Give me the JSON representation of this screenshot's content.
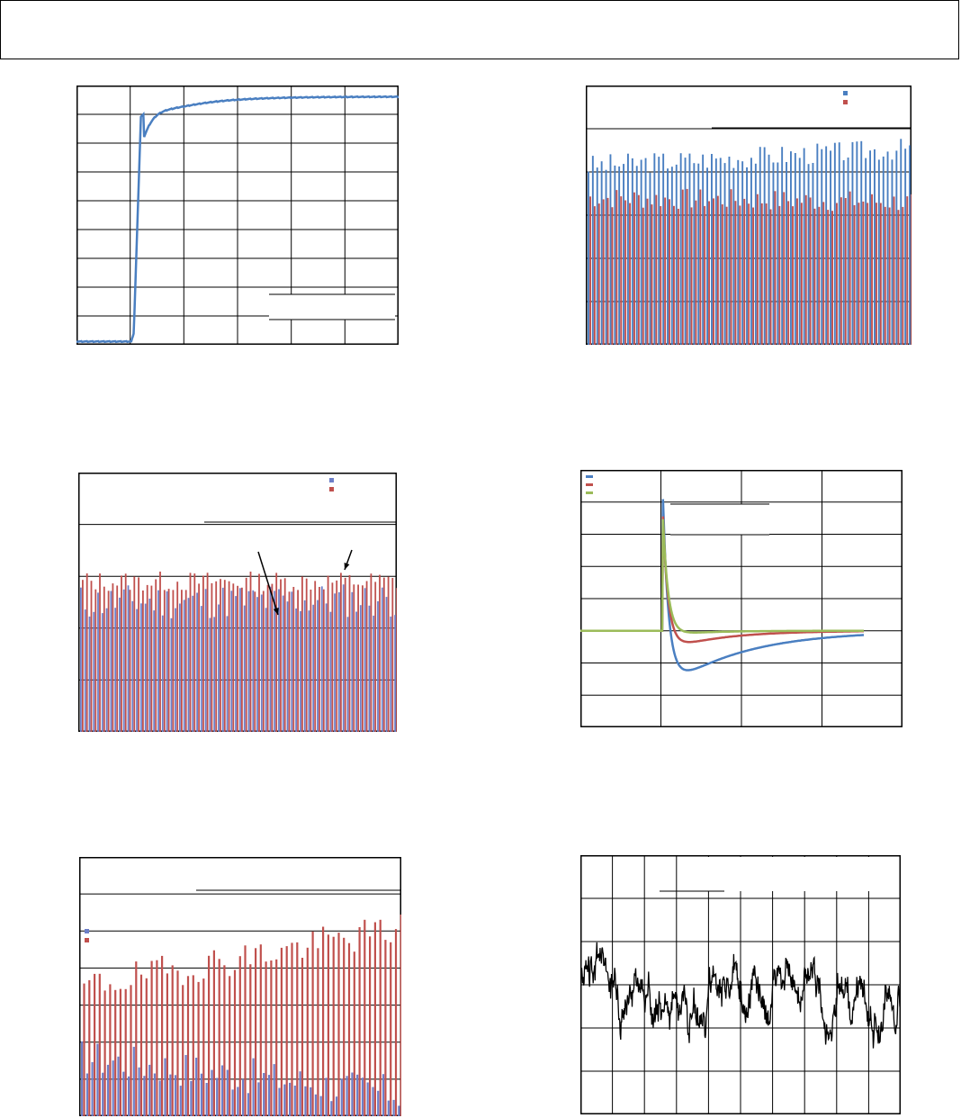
{
  "header": {
    "title": ""
  },
  "chart_data": [
    {
      "id": "settling",
      "type": "line",
      "title": "",
      "xlabel": "",
      "ylabel": "",
      "xlim": [
        0,
        100
      ],
      "ylim": [
        0,
        9
      ],
      "x_divisions": 6,
      "y_divisions": 9,
      "grid": true,
      "series": [
        {
          "color": "#4a7fc1",
          "shape": "settling"
        }
      ]
    },
    {
      "id": "bars-top-right",
      "type": "bar",
      "title": "",
      "xlabel": "",
      "ylabel": "",
      "ylim": [
        0,
        6
      ],
      "y_divisions": 6,
      "bar_count": 74,
      "grid": true,
      "legend_position": "top-right",
      "series": [
        {
          "name": "",
          "color": "#4a7fc1",
          "base": 4.15,
          "trend": 0.4,
          "noise": 0.25,
          "seed": 3
        },
        {
          "name": "",
          "color": "#c0504d",
          "base": 3.4,
          "trend": -0.1,
          "noise": 0.25,
          "seed": 7
        }
      ]
    },
    {
      "id": "bars-middle-left",
      "type": "bar",
      "title": "",
      "xlabel": "",
      "ylabel": "",
      "ylim": [
        0,
        5
      ],
      "y_divisions": 5,
      "bar_count": 74,
      "grid": true,
      "legend_position": "top-right",
      "series": [
        {
          "name": "",
          "color": "#6d7fc8",
          "base": 2.5,
          "trend": 0.05,
          "noise": 0.35,
          "seed": 11
        },
        {
          "name": "",
          "color": "#c0504d",
          "base": 2.9,
          "trend": 0.0,
          "noise": 0.2,
          "seed": 13
        }
      ]
    },
    {
      "id": "transient",
      "type": "line",
      "title": "",
      "xlabel": "",
      "ylabel": "",
      "xlim": [
        0,
        100
      ],
      "ylim": [
        -3,
        5
      ],
      "x_divisions": 4,
      "y_divisions": 8,
      "grid": true,
      "legend_position": "top-left",
      "series": [
        {
          "name": "",
          "color": "#4a7fc1",
          "peak": 4.5,
          "undershoot": -1.9,
          "tau": 14
        },
        {
          "name": "",
          "color": "#c0504d",
          "peak": 3.9,
          "undershoot": -0.65,
          "tau": 10
        },
        {
          "name": "",
          "color": "#9bbb59",
          "peak": 3.8,
          "undershoot": -0.15,
          "tau": 7
        }
      ]
    },
    {
      "id": "bars-bottom-left",
      "type": "bar",
      "title": "",
      "xlabel": "",
      "ylabel": "",
      "ylim": [
        0,
        7
      ],
      "y_divisions": 7,
      "bar_count": 62,
      "grid": true,
      "legend_position": "middle-left",
      "series": [
        {
          "name": "",
          "color": "#6d7fc8",
          "base": 1.6,
          "trend": -1.0,
          "noise": 0.5,
          "seed": 17
        },
        {
          "name": "",
          "color": "#c0504d",
          "base": 3.5,
          "trend": 1.6,
          "noise": 0.45,
          "seed": 19
        }
      ]
    },
    {
      "id": "noise",
      "type": "line",
      "title": "",
      "xlabel": "",
      "ylabel": "",
      "xlim": [
        0,
        100
      ],
      "ylim": [
        -3,
        3
      ],
      "x_divisions": 10,
      "y_divisions": 6,
      "grid": true,
      "series": [
        {
          "color": "#000000",
          "amplitude": 1.0,
          "seed": 23
        }
      ]
    }
  ]
}
